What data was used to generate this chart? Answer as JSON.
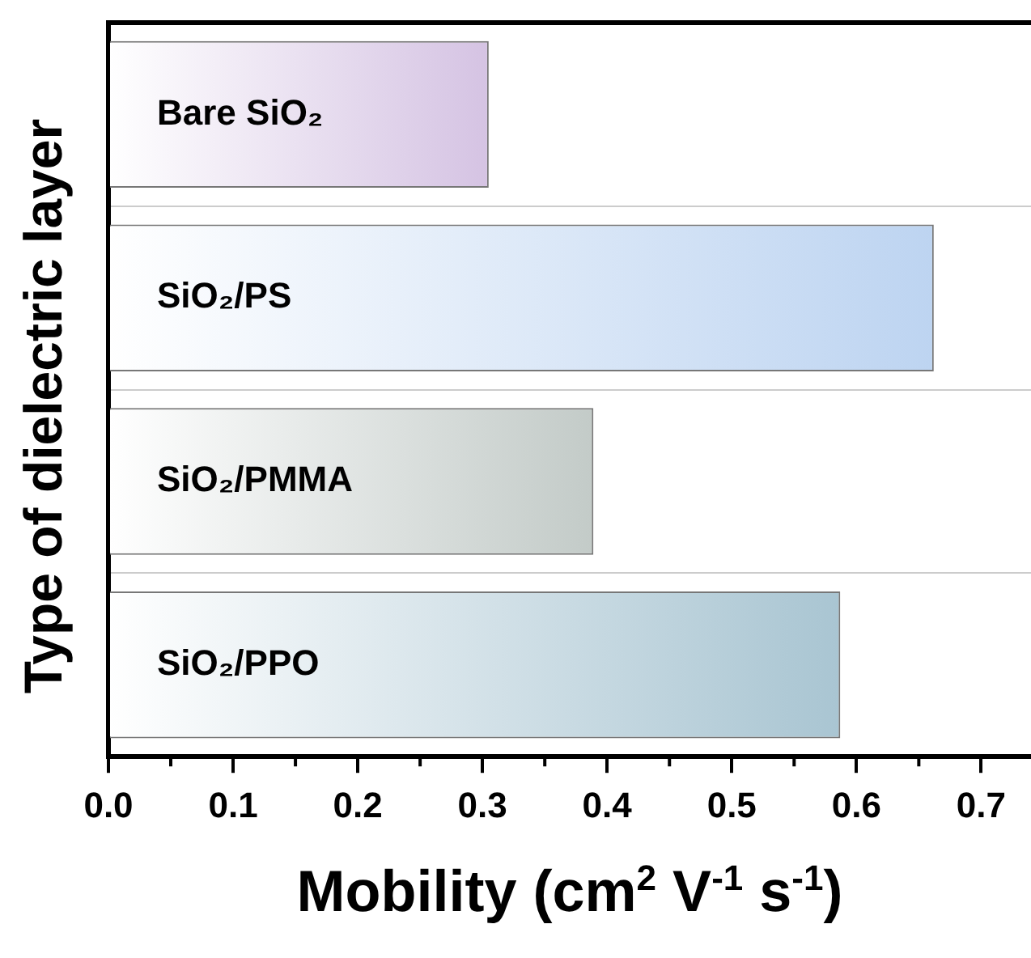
{
  "chart_data": {
    "type": "bar",
    "orientation": "horizontal",
    "xlabel": "Mobility (cm$^{2}$ V$^{-1}$ s$^{-1}$)",
    "ylabel": "Type of dielectric layer",
    "categories": [
      "Bare SiO₂",
      "SiO₂/PS",
      "SiO₂/PMMA",
      "SiO₂/PPO"
    ],
    "values": [
      0.305,
      0.662,
      0.389,
      0.587
    ],
    "colors": [
      "#d5c3e3",
      "#bdd4f1",
      "#c3cbc8",
      "#a9c5d2"
    ],
    "xlim": [
      0,
      0.74
    ],
    "xticks": [
      {
        "value": 0,
        "label": "0.0"
      },
      {
        "value": 0.05,
        "label": null
      },
      0.1,
      {
        "value": 0.15,
        "label": null
      },
      0.2,
      {
        "value": 0.25,
        "label": null
      },
      0.3,
      {
        "value": 0.35,
        "label": null
      },
      0.4,
      {
        "value": 0.45,
        "label": null
      },
      0.5,
      {
        "value": 0.55,
        "label": null
      },
      0.6,
      {
        "value": 0.65,
        "label": null
      },
      0.7
    ],
    "grid": "y",
    "legend": false
  }
}
